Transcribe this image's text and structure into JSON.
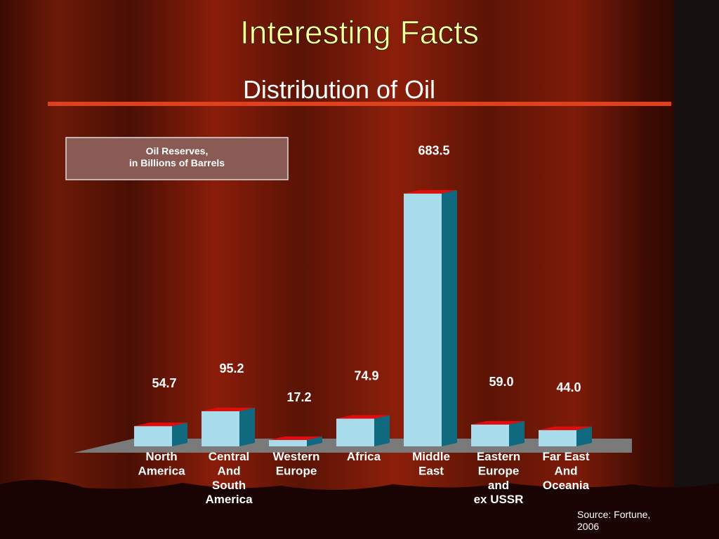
{
  "title": "Interesting Facts",
  "chart_data": {
    "type": "bar3d",
    "title": "Distribution of Oil",
    "legend_text": "Oil Reserves,\nin Billions of Barrels",
    "categories": [
      "North\nAmerica",
      "Central\nAnd\nSouth\nAmerica",
      "Western\nEurope",
      "Africa",
      "Middle\nEast",
      "Eastern\nEurope\nand\nex USSR",
      "Far East\nAnd\nOceania"
    ],
    "values": [
      54.7,
      95.2,
      17.2,
      74.9,
      683.5,
      59.0,
      44.0
    ],
    "value_labels": [
      "54.7",
      "95.2",
      "17.2",
      "74.9",
      "683.5",
      "59.0",
      "44.0"
    ],
    "color": "#a8dcea",
    "ylim": [
      0,
      700
    ]
  },
  "source": "Source: Fortune,\n2006"
}
